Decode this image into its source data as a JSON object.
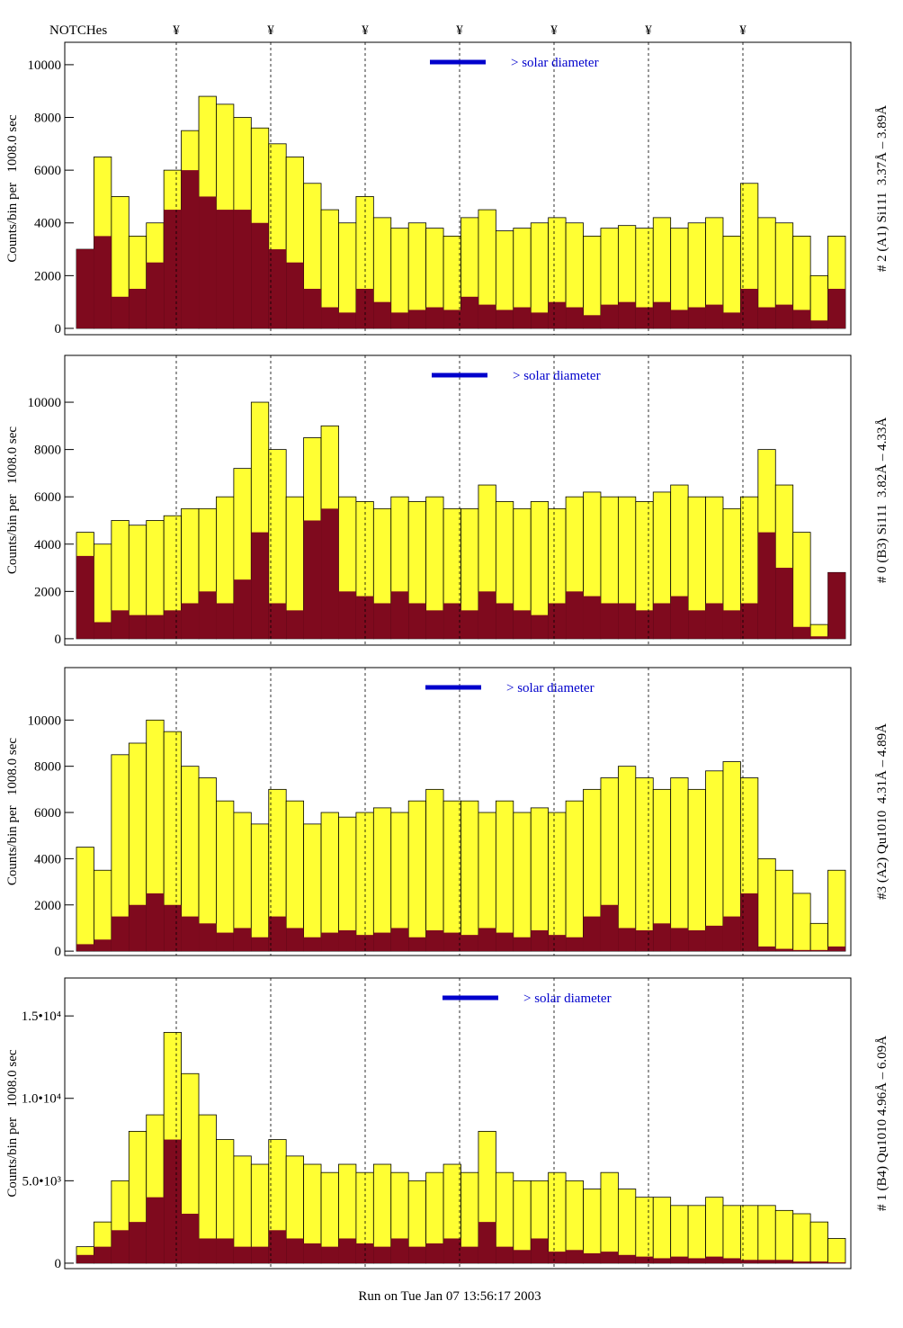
{
  "header": {
    "title": "NOTCHes",
    "notches": [
      "¥",
      "¥",
      "¥",
      "¥",
      "¥",
      "¥",
      "¥"
    ]
  },
  "footer": "Run on Tue Jan 07 13:56:17 2003",
  "chart_data": [
    {
      "type": "bar",
      "side_label": "# 2 (A1) Si111  3.37Å – 3.89Å",
      "ylabel": "Counts/bin per   1008.0 sec",
      "annotation": "> solar diameter",
      "annotation_color": "#0000cc",
      "ylim": [
        -240,
        10850
      ],
      "yticks": [
        0,
        2000,
        4000,
        6000,
        8000,
        10000
      ],
      "series": [
        {
          "color": "#ffff33",
          "values": [
            3000,
            6500,
            5000,
            3500,
            4000,
            6000,
            7500,
            8800,
            8500,
            8000,
            7600,
            7000,
            6500,
            5500,
            4500,
            4000,
            5000,
            4200,
            3800,
            4000,
            3800,
            3500,
            4200,
            4500,
            3700,
            3800,
            4000,
            4200,
            4000,
            3500,
            3800,
            3900,
            3800,
            4200,
            3800,
            4000,
            4200,
            3500,
            5500,
            4200,
            4000,
            3500,
            2000,
            3500
          ]
        },
        {
          "color": "#7f0a1e",
          "values": [
            3000,
            3500,
            1200,
            1500,
            2500,
            4500,
            6000,
            5000,
            4500,
            4500,
            4000,
            3000,
            2500,
            1500,
            800,
            600,
            1500,
            1000,
            600,
            700,
            800,
            700,
            1200,
            900,
            700,
            800,
            600,
            1000,
            800,
            500,
            900,
            1000,
            800,
            1000,
            700,
            800,
            900,
            600,
            1500,
            800,
            900,
            700,
            300,
            1500
          ]
        }
      ]
    },
    {
      "type": "bar",
      "side_label": "# 0 (B3) Si111  3.82Å – 4.33Å",
      "ylabel": "Counts/bin per   1008.0 sec",
      "annotation": "> solar diameter",
      "annotation_color": "#0000cc",
      "ylim": [
        -270,
        11980
      ],
      "yticks": [
        0,
        2000,
        4000,
        6000,
        8000,
        10000
      ],
      "series": [
        {
          "color": "#ffff33",
          "values": [
            4500,
            4000,
            5000,
            4800,
            5000,
            5200,
            5500,
            5500,
            6000,
            7200,
            10000,
            8000,
            6000,
            8500,
            9000,
            6000,
            5800,
            5500,
            6000,
            5800,
            6000,
            5500,
            5500,
            6500,
            5800,
            5500,
            5800,
            5500,
            6000,
            6200,
            6000,
            6000,
            5800,
            6200,
            6500,
            6000,
            6000,
            5500,
            6000,
            8000,
            6500,
            4500,
            600,
            2800
          ]
        },
        {
          "color": "#7f0a1e",
          "values": [
            3500,
            700,
            1200,
            1000,
            1000,
            1200,
            1500,
            2000,
            1500,
            2500,
            4500,
            1500,
            1200,
            5000,
            5500,
            2000,
            1800,
            1500,
            2000,
            1500,
            1200,
            1500,
            1200,
            2000,
            1500,
            1200,
            1000,
            1500,
            2000,
            1800,
            1500,
            1500,
            1200,
            1500,
            1800,
            1200,
            1500,
            1200,
            1500,
            4500,
            3000,
            500,
            100,
            2800
          ]
        }
      ]
    },
    {
      "type": "bar",
      "side_label": "#3 (A2) Qu1010  4.31Å – 4.89Å",
      "ylabel": "Counts/bin per   1008.0 sec",
      "annotation": "> solar diameter",
      "annotation_color": "#0000cc",
      "ylim": [
        -190,
        12270
      ],
      "yticks": [
        0,
        2000,
        4000,
        6000,
        8000,
        10000
      ],
      "series": [
        {
          "color": "#ffff33",
          "values": [
            4500,
            3500,
            8500,
            9000,
            10000,
            9500,
            8000,
            7500,
            6500,
            6000,
            5500,
            7000,
            6500,
            5500,
            6000,
            5800,
            6000,
            6200,
            6000,
            6500,
            7000,
            6500,
            6500,
            6000,
            6500,
            6000,
            6200,
            6000,
            6500,
            7000,
            7500,
            8000,
            7500,
            7000,
            7500,
            7000,
            7800,
            8200,
            7500,
            4000,
            3500,
            2500,
            1200,
            3500
          ]
        },
        {
          "color": "#7f0a1e",
          "values": [
            300,
            500,
            1500,
            2000,
            2500,
            2000,
            1500,
            1200,
            800,
            1000,
            600,
            1500,
            1000,
            600,
            800,
            900,
            700,
            800,
            1000,
            600,
            900,
            800,
            700,
            1000,
            800,
            600,
            900,
            700,
            600,
            1500,
            2000,
            1000,
            900,
            1200,
            1000,
            900,
            1100,
            1500,
            2500,
            200,
            100,
            50,
            50,
            200
          ]
        }
      ]
    },
    {
      "type": "bar",
      "side_label": "# 1 (B4) Qu1010 4.96Å – 6.09Å",
      "ylabel": "Counts/bin per   1008.0 sec",
      "annotation": "> solar diameter",
      "annotation_color": "#0000cc",
      "ylim": [
        -330,
        17300
      ],
      "yticks": [
        0,
        {
          "value": 5000,
          "label": "5.0•10³"
        },
        {
          "value": 10000,
          "label": "1.0•10⁴"
        },
        {
          "value": 15000,
          "label": "1.5•10⁴"
        }
      ],
      "series": [
        {
          "color": "#ffff33",
          "values": [
            1000,
            2500,
            5000,
            8000,
            9000,
            14000,
            11500,
            9000,
            7500,
            6500,
            6000,
            7500,
            6500,
            6000,
            5500,
            6000,
            5500,
            6000,
            5500,
            5000,
            5500,
            6000,
            5500,
            8000,
            5500,
            5000,
            5000,
            5500,
            5000,
            4500,
            5500,
            4500,
            4000,
            4000,
            3500,
            3500,
            4000,
            3500,
            3500,
            3500,
            3200,
            3000,
            2500,
            1500
          ]
        },
        {
          "color": "#7f0a1e",
          "values": [
            500,
            1000,
            2000,
            2500,
            4000,
            7500,
            3000,
            1500,
            1500,
            1000,
            1000,
            2000,
            1500,
            1200,
            1000,
            1500,
            1200,
            1000,
            1500,
            1000,
            1200,
            1500,
            1000,
            2500,
            1000,
            800,
            1500,
            700,
            800,
            600,
            700,
            500,
            400,
            300,
            400,
            300,
            400,
            300,
            200,
            200,
            200,
            100,
            100,
            50
          ]
        }
      ]
    }
  ]
}
